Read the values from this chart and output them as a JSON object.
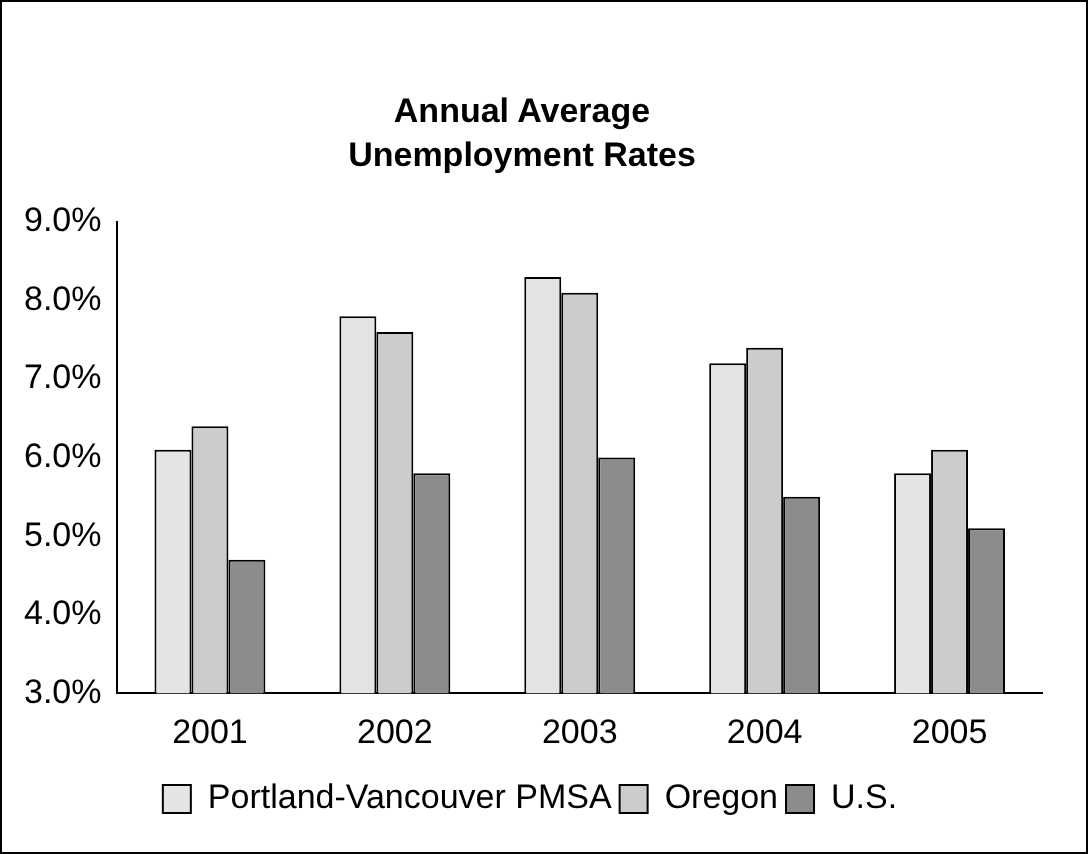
{
  "chart_data": {
    "type": "bar",
    "title": "Annual Average Unemployment Rates",
    "categories": [
      "2001",
      "2002",
      "2003",
      "2004",
      "2005"
    ],
    "series": [
      {
        "name": "Portland-Vancouver PMSA",
        "color": "#e4e4e4",
        "values": [
          6.1,
          7.8,
          8.3,
          7.2,
          5.8
        ]
      },
      {
        "name": "Oregon",
        "color": "#cccccc",
        "values": [
          6.4,
          7.6,
          8.1,
          7.4,
          6.1
        ]
      },
      {
        "name": "U.S.",
        "color": "#8c8c8c",
        "values": [
          4.7,
          5.8,
          6.0,
          5.5,
          5.1
        ]
      }
    ],
    "ylim": [
      3,
      9
    ],
    "yticks": [
      {
        "value": 3,
        "label": "3.0%"
      },
      {
        "value": 4,
        "label": "4.0%"
      },
      {
        "value": 5,
        "label": "5.0%"
      },
      {
        "value": 6,
        "label": "6.0%"
      },
      {
        "value": 7,
        "label": "7.0%"
      },
      {
        "value": 8,
        "label": "8.0%"
      },
      {
        "value": 9,
        "label": "9.0%"
      }
    ],
    "grid": false,
    "legend": "bottom"
  }
}
